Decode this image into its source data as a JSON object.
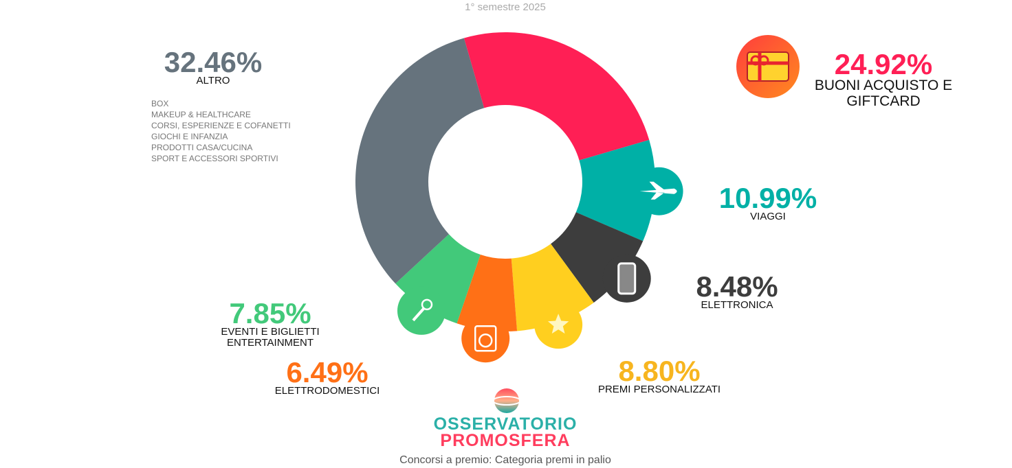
{
  "chart_data": {
    "type": "donut",
    "subtitle": "1° semestre 2025",
    "title": "Concorsi a premio: Categoria premi in palio",
    "categories": [
      "BUONI ACQUISTO E GIFTCARD",
      "VIAGGI",
      "ELETTRONICA",
      "PREMI PERSONALIZZATI",
      "ELETTRODOMESTICI",
      "EVENTI E BIGLIETTI ENTERTAINMENT",
      "ALTRO"
    ],
    "values": [
      24.92,
      10.99,
      8.48,
      8.8,
      6.49,
      7.85,
      32.46
    ],
    "value_labels": [
      "24.92%",
      "10.99%",
      "8.48%",
      "8.80%",
      "6.49%",
      "7.85%",
      "32.46%"
    ],
    "colors": [
      "#ff1f55",
      "#00b0a6",
      "#3d3d3d",
      "#ffcf1f",
      "#ff7016",
      "#42c97a",
      "#66737d"
    ],
    "label_colors": [
      "#ff1f55",
      "#00b0a6",
      "#3d3d3d",
      "#f7b51f",
      "#ff7016",
      "#42c97a",
      "#66737d"
    ],
    "altro_items": [
      "BOX",
      "MAKEUP & HEALTHCARE",
      "CORSI, ESPERIENZE E COFANETTI",
      "GIOCHI E INFANZIA",
      "PRODOTTI CASA/CUCINA",
      "SPORT E ACCESSORI SPORTIVI"
    ],
    "logo": {
      "line1": "OSSERVATORIO",
      "line2": "PROMOSFERA"
    }
  }
}
